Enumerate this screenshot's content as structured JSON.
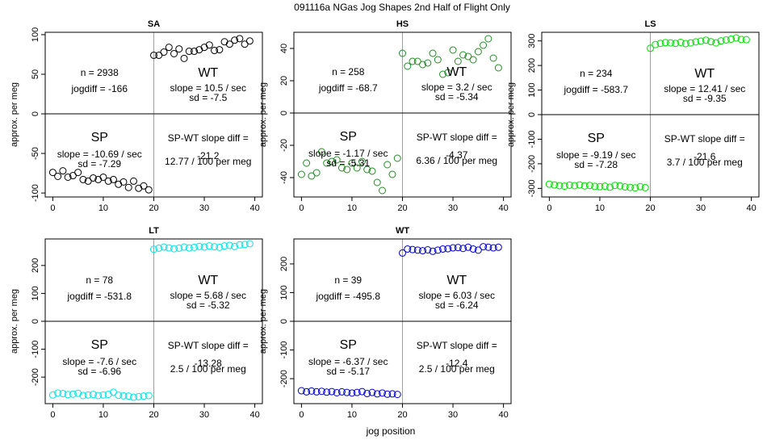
{
  "suptitle": "091116a   NGas Jog Shapes 2nd Half of Flight Only",
  "xlabel": "jog position",
  "chart_data": [
    {
      "type": "scatter",
      "title": "SA",
      "ylabel": "approx. per meg",
      "color": "#000000",
      "xlim": [
        -1.5,
        41.5
      ],
      "ylim": [
        -105,
        103
      ],
      "xticks": [
        0,
        10,
        20,
        30,
        40
      ],
      "yticks": [
        100,
        50,
        0,
        -50,
        -100
      ],
      "x": [
        0,
        1,
        2,
        3,
        4,
        5,
        6,
        7,
        8,
        9,
        10,
        11,
        12,
        13,
        14,
        15,
        16,
        17,
        18,
        19,
        20,
        21,
        22,
        23,
        24,
        25,
        26,
        27,
        28,
        29,
        30,
        31,
        32,
        33,
        34,
        35,
        36,
        37,
        38,
        39
      ],
      "y": [
        -74,
        -79,
        -72,
        -80,
        -78,
        -74,
        -83,
        -85,
        -81,
        -83,
        -80,
        -85,
        -83,
        -89,
        -86,
        -93,
        -85,
        -94,
        -91,
        -96,
        74,
        74,
        78,
        84,
        76,
        82,
        70,
        79,
        79,
        81,
        84,
        87,
        80,
        81,
        91,
        88,
        93,
        95,
        88,
        92
      ],
      "annotations": {
        "n": "n = 2938",
        "jogdiff": "jogdiff = -166",
        "wt_label": "WT",
        "wt_slope": "slope = 10.5 / sec",
        "wt_sd": "sd = -7.5",
        "sp_label": "SP",
        "sp_slope": "slope = -10.69 / sec",
        "sp_sd": "sd = -7.29",
        "diff_label": "SP-WT slope diff =",
        "diff_value": "-21.2",
        "diff_per": "12.77 / 100 per meg"
      }
    },
    {
      "type": "scatter",
      "title": "HS",
      "ylabel": "approx. per meg",
      "color": "#228B22",
      "xlim": [
        -1.5,
        41.5
      ],
      "ylim": [
        -52,
        50
      ],
      "xticks": [
        0,
        10,
        20,
        30,
        40
      ],
      "yticks": [
        40,
        20,
        0,
        -20,
        -40
      ],
      "x": [
        0,
        1,
        2,
        3,
        4,
        5,
        6,
        7,
        8,
        9,
        10,
        11,
        12,
        13,
        14,
        15,
        16,
        17,
        18,
        19,
        20,
        21,
        22,
        23,
        24,
        25,
        26,
        27,
        28,
        29,
        30,
        31,
        32,
        33,
        34,
        35,
        36,
        37,
        38,
        39
      ],
      "y": [
        -38,
        -31,
        -39,
        -37,
        -24,
        -31,
        -30,
        -29,
        -34,
        -35,
        -31,
        -34,
        -30,
        -35,
        -36,
        -43,
        -48,
        -32,
        -38,
        -28,
        37,
        29,
        32,
        32,
        30,
        31,
        37,
        33,
        24,
        25,
        39,
        32,
        36,
        35,
        33,
        38,
        42,
        46,
        34,
        28
      ],
      "annotations": {
        "n": "n = 258",
        "jogdiff": "jogdiff = -68.7",
        "wt_label": "WT",
        "wt_slope": "slope = 3.2 / sec",
        "wt_sd": "sd = -5.34",
        "sp_label": "SP",
        "sp_slope": "slope = -1.17 / sec",
        "sp_sd": "sd = -5.31",
        "diff_label": "SP-WT slope diff =",
        "diff_value": "-4.37",
        "diff_per": "6.36 / 100 per meg"
      }
    },
    {
      "type": "scatter",
      "title": "LS",
      "ylabel": "approx. per meg",
      "color": "#00DD00",
      "xlim": [
        -1.5,
        41.5
      ],
      "ylim": [
        -335,
        335
      ],
      "xticks": [
        0,
        10,
        20,
        30,
        40
      ],
      "yticks": [
        300,
        200,
        100,
        0,
        -100,
        -200,
        -300
      ],
      "x": [
        0,
        1,
        2,
        3,
        4,
        5,
        6,
        7,
        8,
        9,
        10,
        11,
        12,
        13,
        14,
        15,
        16,
        17,
        18,
        19,
        20,
        21,
        22,
        23,
        24,
        25,
        26,
        27,
        28,
        29,
        30,
        31,
        32,
        33,
        34,
        35,
        36,
        37,
        38,
        39
      ],
      "y": [
        -283,
        -286,
        -289,
        -291,
        -287,
        -289,
        -286,
        -290,
        -288,
        -292,
        -293,
        -291,
        -295,
        -288,
        -290,
        -294,
        -296,
        -298,
        -293,
        -297,
        270,
        285,
        290,
        293,
        292,
        290,
        294,
        289,
        292,
        296,
        299,
        303,
        297,
        292,
        300,
        304,
        307,
        312,
        306,
        305
      ],
      "annotations": {
        "n": "n = 234",
        "jogdiff": "jogdiff = -583.7",
        "wt_label": "WT",
        "wt_slope": "slope = 12.41 / sec",
        "wt_sd": "sd = -9.35",
        "sp_label": "SP",
        "sp_slope": "slope = -9.19 / sec",
        "sp_sd": "sd = -7.28",
        "diff_label": "SP-WT slope diff =",
        "diff_value": "-21.6",
        "diff_per": "3.7 / 100 per meg"
      }
    },
    {
      "type": "scatter",
      "title": "LT",
      "ylabel": "approx. per meg",
      "color": "#00E5E5",
      "xlim": [
        -1.5,
        41.5
      ],
      "ylim": [
        -295,
        295
      ],
      "xticks": [
        0,
        10,
        20,
        30,
        40
      ],
      "yticks": [
        200,
        100,
        0,
        -100,
        -200
      ],
      "x": [
        0,
        1,
        2,
        3,
        4,
        5,
        6,
        7,
        8,
        9,
        10,
        11,
        12,
        13,
        14,
        15,
        16,
        17,
        18,
        19,
        20,
        21,
        22,
        23,
        24,
        25,
        26,
        27,
        28,
        29,
        30,
        31,
        32,
        33,
        34,
        35,
        36,
        37,
        38,
        39
      ],
      "y": [
        -264,
        -257,
        -259,
        -263,
        -261,
        -258,
        -266,
        -264,
        -262,
        -266,
        -264,
        -262,
        -254,
        -265,
        -267,
        -268,
        -272,
        -270,
        -268,
        -266,
        258,
        262,
        266,
        263,
        260,
        262,
        266,
        263,
        265,
        268,
        266,
        270,
        267,
        265,
        270,
        272,
        268,
        274,
        275,
        278
      ],
      "annotations": {
        "n": "n = 78",
        "jogdiff": "jogdiff = -531.8",
        "wt_label": "WT",
        "wt_slope": "slope = 5.68 / sec",
        "wt_sd": "sd = -5.32",
        "sp_label": "SP",
        "sp_slope": "slope = -7.6 / sec",
        "sp_sd": "sd = -6.96",
        "diff_label": "SP-WT slope diff =",
        "diff_value": "-13.28",
        "diff_per": "2.5 / 100 per meg"
      }
    },
    {
      "type": "scatter",
      "title": "WT",
      "ylabel": "approx. per meg",
      "color": "#0000CC",
      "xlim": [
        -1.5,
        41.5
      ],
      "ylim": [
        -287,
        287
      ],
      "xticks": [
        0,
        10,
        20,
        30,
        40
      ],
      "yticks": [
        200,
        100,
        0,
        -100,
        -200
      ],
      "x": [
        0,
        1,
        2,
        3,
        4,
        5,
        6,
        7,
        8,
        9,
        10,
        11,
        12,
        13,
        14,
        15,
        16,
        17,
        18,
        19,
        20,
        21,
        22,
        23,
        24,
        25,
        26,
        27,
        28,
        29,
        30,
        31,
        32,
        33,
        34,
        35,
        36,
        37,
        38,
        39
      ],
      "y": [
        -242,
        -246,
        -243,
        -246,
        -244,
        -247,
        -245,
        -249,
        -246,
        -248,
        -250,
        -248,
        -245,
        -252,
        -248,
        -253,
        -250,
        -254,
        -253,
        -255,
        238,
        252,
        250,
        248,
        246,
        249,
        244,
        248,
        252,
        253,
        256,
        257,
        254,
        258,
        252,
        248,
        260,
        258,
        256,
        258
      ],
      "annotations": {
        "n": "n = 39",
        "jogdiff": "jogdiff = -495.8",
        "wt_label": "WT",
        "wt_slope": "slope = 6.03 / sec",
        "wt_sd": "sd = -6.24",
        "sp_label": "SP",
        "sp_slope": "slope = -6.37 / sec",
        "sp_sd": "sd = -5.17",
        "diff_label": "SP-WT slope diff =",
        "diff_value": "-12.4",
        "diff_per": "2.5 / 100 per meg"
      }
    }
  ]
}
